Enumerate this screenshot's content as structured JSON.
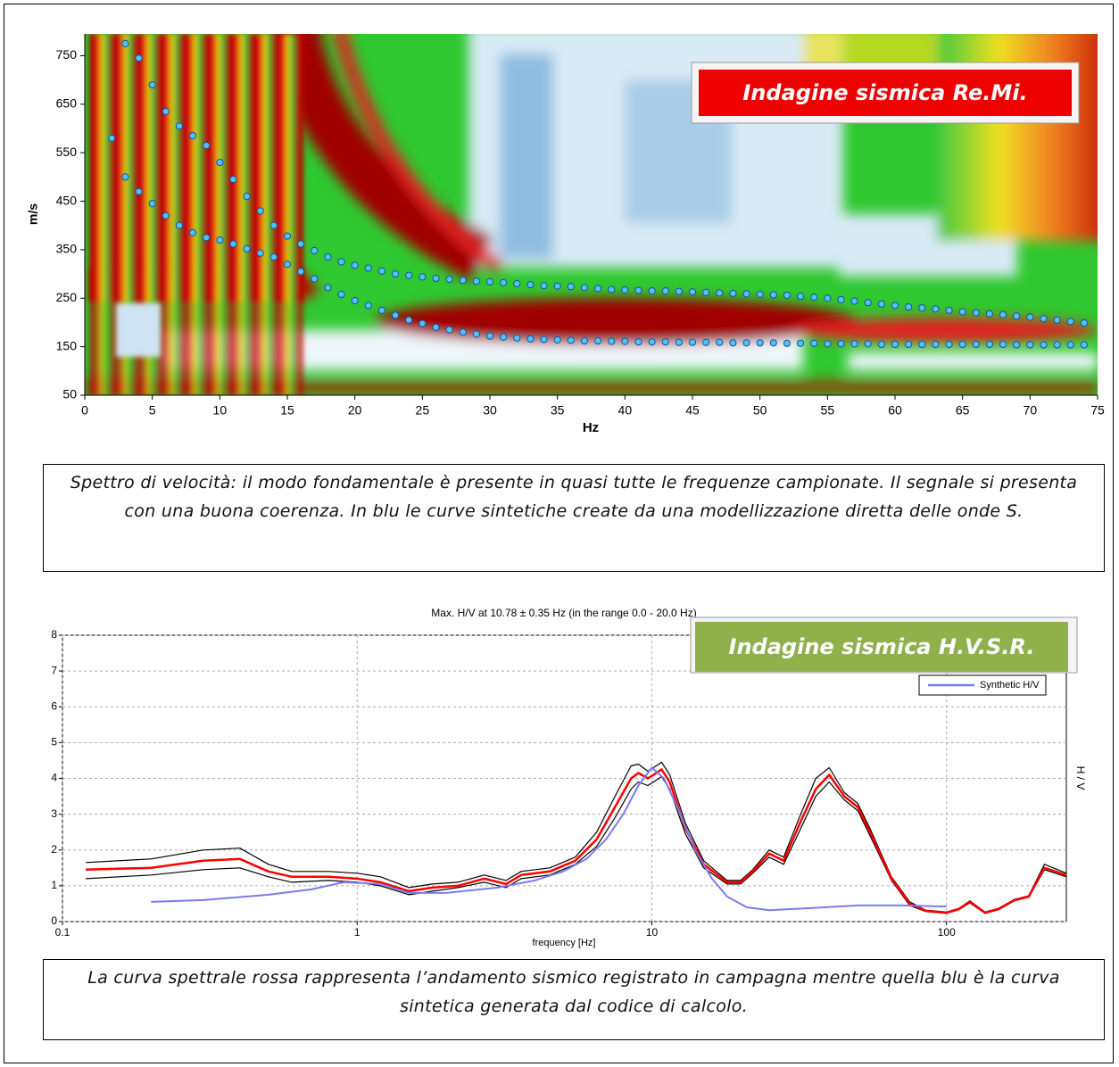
{
  "chart_data": [
    {
      "type": "scatter",
      "annotation": "Indagine sismica Re.Mi.",
      "xlabel": "Hz",
      "ylabel": "m/s",
      "xlim": [
        0,
        75
      ],
      "xticks": [
        0,
        5,
        10,
        15,
        20,
        25,
        30,
        35,
        40,
        45,
        50,
        55,
        60,
        65,
        70,
        75
      ],
      "ylim": [
        50,
        795
      ],
      "yticks": [
        50,
        150,
        250,
        350,
        450,
        550,
        650,
        750
      ],
      "grid": false,
      "series": [
        {
          "color": "#4fc3f7",
          "x": [
            2,
            3,
            4,
            5,
            6,
            7,
            8,
            9,
            10,
            11,
            12,
            13,
            14,
            15,
            16,
            17,
            18,
            19,
            20,
            21,
            22,
            23,
            24,
            25,
            26,
            27,
            28,
            29,
            30,
            31,
            32,
            33,
            34,
            35,
            36,
            37,
            38,
            39,
            40,
            41,
            42,
            43,
            44,
            45,
            46,
            47,
            48,
            49,
            50,
            51,
            52,
            53,
            54,
            55,
            56,
            57,
            58,
            59,
            60,
            61,
            62,
            63,
            64,
            65,
            66,
            67,
            68,
            69,
            70,
            71,
            72,
            73,
            74
          ],
          "values": [
            580,
            500,
            470,
            445,
            420,
            400,
            385,
            375,
            370,
            362,
            352,
            343,
            335,
            320,
            305,
            290,
            272,
            258,
            245,
            235,
            225,
            215,
            205,
            198,
            190,
            185,
            180,
            176,
            172,
            170,
            168,
            166,
            165,
            164,
            163,
            162,
            162,
            161,
            161,
            160,
            160,
            160,
            159,
            159,
            159,
            159,
            158,
            158,
            158,
            158,
            157,
            157,
            157,
            156,
            156,
            156,
            156,
            155,
            155,
            155,
            155,
            155,
            155,
            155,
            155,
            155,
            155,
            154,
            154,
            154,
            154,
            154,
            154
          ]
        },
        {
          "color": "#4fc3f7",
          "x": [
            3,
            4,
            5,
            6,
            7,
            8,
            9,
            10,
            11,
            12,
            13,
            14,
            15,
            16,
            17,
            18,
            19,
            20,
            21,
            22,
            23,
            24,
            25,
            26,
            27,
            28,
            29,
            30,
            31,
            32,
            33,
            34,
            35,
            36,
            37,
            38,
            39,
            40,
            41,
            42,
            43,
            44,
            45,
            46,
            47,
            48,
            49,
            50,
            51,
            52,
            53,
            54,
            55,
            56,
            57,
            58,
            59,
            60,
            61,
            62,
            63,
            64,
            65,
            66,
            67,
            68,
            69,
            70,
            71,
            72,
            73,
            74
          ],
          "values": [
            775,
            745,
            690,
            635,
            605,
            585,
            565,
            530,
            495,
            460,
            430,
            400,
            378,
            362,
            348,
            335,
            325,
            318,
            312,
            306,
            300,
            297,
            294,
            291,
            289,
            287,
            285,
            284,
            282,
            280,
            278,
            276,
            275,
            274,
            272,
            270,
            268,
            267,
            266,
            265,
            265,
            264,
            263,
            262,
            261,
            260,
            259,
            258,
            257,
            256,
            254,
            252,
            250,
            247,
            244,
            241,
            238,
            235,
            232,
            230,
            228,
            225,
            222,
            220,
            218,
            216,
            213,
            211,
            208,
            205,
            202,
            199
          ]
        }
      ]
    },
    {
      "type": "line",
      "title": "Max. H/V at 10.78 ± 0.35 Hz (in the range 0.0 - 20.0 Hz)",
      "annotation": "Indagine sismica H.V.S.R.",
      "xlabel": "frequency [Hz]",
      "y2label": "H / V",
      "xscale": "log",
      "xlim": [
        0.1,
        255
      ],
      "xticks": [
        0.1,
        1,
        10,
        100
      ],
      "ylim": [
        0,
        8
      ],
      "yticks": [
        0,
        1,
        2,
        3,
        4,
        5,
        6,
        7,
        8
      ],
      "grid": true,
      "legend": "upper right",
      "series": [
        {
          "color": "#000000",
          "x": [
            0.12,
            0.2,
            0.3,
            0.4,
            0.5,
            0.6,
            0.8,
            1,
            1.2,
            1.5,
            1.8,
            2.2,
            2.7,
            3.2,
            3.6,
            4.5,
            5.5,
            6.5,
            7.5,
            8.5,
            9,
            9.7,
            10.8,
            11.5,
            13,
            15,
            18,
            20,
            22,
            25,
            28,
            32,
            36,
            40,
            45,
            50,
            55,
            65,
            75,
            85,
            100,
            110,
            120,
            135,
            150,
            170,
            190,
            215,
            255
          ],
          "values": [
            1.65,
            1.75,
            2.0,
            2.05,
            1.6,
            1.4,
            1.4,
            1.35,
            1.25,
            0.95,
            1.05,
            1.1,
            1.3,
            1.15,
            1.4,
            1.5,
            1.8,
            2.5,
            3.5,
            4.35,
            4.4,
            4.2,
            4.45,
            4.1,
            2.75,
            1.7,
            1.15,
            1.15,
            1.45,
            2.0,
            1.8,
            3.0,
            4.0,
            4.3,
            3.6,
            3.3,
            2.6,
            1.25,
            0.55,
            0.32,
            0.27,
            0.37,
            0.58,
            0.27,
            0.37,
            0.62,
            0.72,
            1.6,
            1.35
          ]
        },
        {
          "color": "#000000",
          "x": [
            0.12,
            0.2,
            0.3,
            0.4,
            0.5,
            0.6,
            0.8,
            1,
            1.2,
            1.5,
            1.8,
            2.2,
            2.7,
            3.2,
            3.6,
            4.5,
            5.5,
            6.5,
            7.5,
            8.5,
            9,
            9.7,
            10.8,
            11.5,
            13,
            15,
            18,
            20,
            22,
            25,
            28,
            32,
            36,
            40,
            45,
            50,
            55,
            65,
            75,
            85,
            100,
            110,
            120,
            135,
            150,
            170,
            190,
            215,
            255
          ],
          "values": [
            1.2,
            1.3,
            1.45,
            1.5,
            1.25,
            1.1,
            1.15,
            1.1,
            1.0,
            0.75,
            0.85,
            0.95,
            1.1,
            0.95,
            1.2,
            1.3,
            1.6,
            2.1,
            2.9,
            3.7,
            3.9,
            3.8,
            4.05,
            3.7,
            2.45,
            1.5,
            1.05,
            1.05,
            1.35,
            1.8,
            1.6,
            2.6,
            3.5,
            3.9,
            3.4,
            3.1,
            2.4,
            1.15,
            0.45,
            0.28,
            0.23,
            0.33,
            0.52,
            0.23,
            0.33,
            0.58,
            0.68,
            1.45,
            1.25
          ]
        },
        {
          "color": "#ff0000",
          "x": [
            0.12,
            0.2,
            0.3,
            0.4,
            0.5,
            0.6,
            0.8,
            1,
            1.2,
            1.5,
            1.8,
            2.2,
            2.7,
            3.2,
            3.6,
            4.5,
            5.5,
            6.5,
            7.5,
            8.5,
            9,
            9.7,
            10.8,
            11.5,
            13,
            15,
            18,
            20,
            22,
            25,
            28,
            32,
            36,
            40,
            45,
            50,
            55,
            65,
            75,
            85,
            100,
            110,
            120,
            135,
            150,
            170,
            190,
            215,
            255
          ],
          "values": [
            1.45,
            1.5,
            1.7,
            1.75,
            1.4,
            1.25,
            1.25,
            1.2,
            1.1,
            0.85,
            0.95,
            1.0,
            1.2,
            1.05,
            1.3,
            1.4,
            1.7,
            2.3,
            3.2,
            4.0,
            4.15,
            4.0,
            4.25,
            3.9,
            2.6,
            1.6,
            1.1,
            1.1,
            1.4,
            1.9,
            1.7,
            2.8,
            3.7,
            4.1,
            3.5,
            3.2,
            2.5,
            1.2,
            0.5,
            0.3,
            0.25,
            0.35,
            0.55,
            0.25,
            0.35,
            0.6,
            0.7,
            1.5,
            1.3
          ]
        },
        {
          "name": "Synthetic H/V",
          "color": "#7b7bf0",
          "x": [
            0.2,
            0.3,
            0.5,
            0.7,
            0.9,
            1.2,
            1.5,
            2,
            3,
            4,
            5,
            6,
            7,
            8,
            9,
            10,
            11,
            12.5,
            14,
            16,
            18,
            21,
            25,
            35,
            50,
            70,
            100
          ],
          "values": [
            0.55,
            0.6,
            0.75,
            0.9,
            1.1,
            1.05,
            0.8,
            0.8,
            0.95,
            1.15,
            1.4,
            1.75,
            2.3,
            3.0,
            3.8,
            4.3,
            4.0,
            3.0,
            2.0,
            1.2,
            0.7,
            0.4,
            0.32,
            0.38,
            0.45,
            0.45,
            0.42
          ]
        }
      ]
    }
  ],
  "captions": [
    "Spettro di velocità: il modo fondamentale è presente in quasi tutte le frequenze campionate. Il segnale si presenta con una buona coerenza. In blu le curve sintetiche create da una modellizzazione diretta delle onde S.",
    "La curva spettrale rossa rappresenta l’andamento sismico registrato in campagna mentre quella blu è la curva sintetica generata dal codice di calcolo."
  ]
}
